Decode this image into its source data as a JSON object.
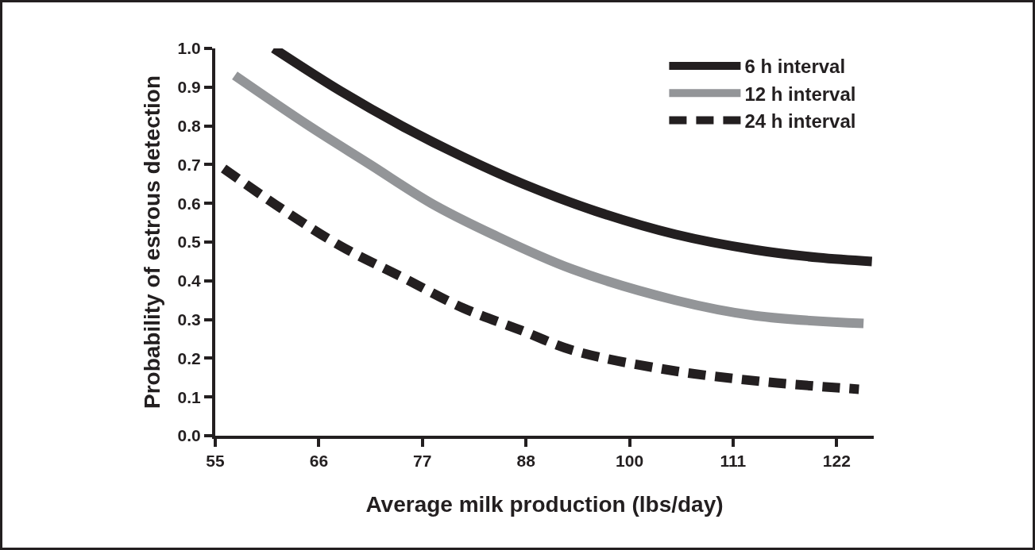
{
  "chart_data": {
    "type": "line",
    "xlabel": "Average milk production (lbs/day)",
    "ylabel": "Probability of estrous detection",
    "xlim": [
      55,
      126
    ],
    "ylim": [
      0,
      1.0
    ],
    "xticks": [
      55,
      {
        "value": 66.17,
        "label": "66"
      },
      {
        "value": 77.33,
        "label": "77"
      },
      {
        "value": 88.5,
        "label": "88"
      },
      {
        "value": 99.67,
        "label": "100"
      },
      {
        "value": 110.83,
        "label": "111"
      },
      122
    ],
    "yticks": [
      {
        "value": 0,
        "label": "0.0"
      },
      0.1,
      0.2,
      0.3,
      0.4,
      0.5,
      0.6,
      0.7,
      0.8,
      0.9,
      {
        "value": 1.0,
        "label": "1.0"
      }
    ],
    "legend": "top right",
    "series": [
      {
        "name": "6 h interval",
        "color": "#231f20",
        "line_style": "solid",
        "x": [
          61.3,
          68.5,
          75.1,
          81.7,
          88.2,
          96.0,
          104.6,
          113.2,
          120.0,
          125.8
        ],
        "values": [
          1.0,
          0.89,
          0.8,
          0.72,
          0.65,
          0.58,
          0.52,
          0.48,
          0.46,
          0.45
        ]
      },
      {
        "name": "12 h interval",
        "color": "#939598",
        "line_style": "solid",
        "x": [
          57.1,
          65.1,
          71.7,
          78.3,
          84.9,
          93.5,
          104.6,
          113.2,
          124.9
        ],
        "values": [
          0.93,
          0.8,
          0.7,
          0.6,
          0.52,
          0.43,
          0.35,
          0.31,
          0.29
        ]
      },
      {
        "name": "24 h interval",
        "color": "#231f20",
        "line_style": "dashed",
        "x": [
          55.9,
          61.9,
          68.5,
          75.1,
          81.7,
          88.2,
          93.6,
          103.8,
          113.9,
          124.4
        ],
        "values": [
          0.69,
          0.59,
          0.49,
          0.41,
          0.33,
          0.27,
          0.22,
          0.17,
          0.14,
          0.12
        ]
      }
    ]
  }
}
